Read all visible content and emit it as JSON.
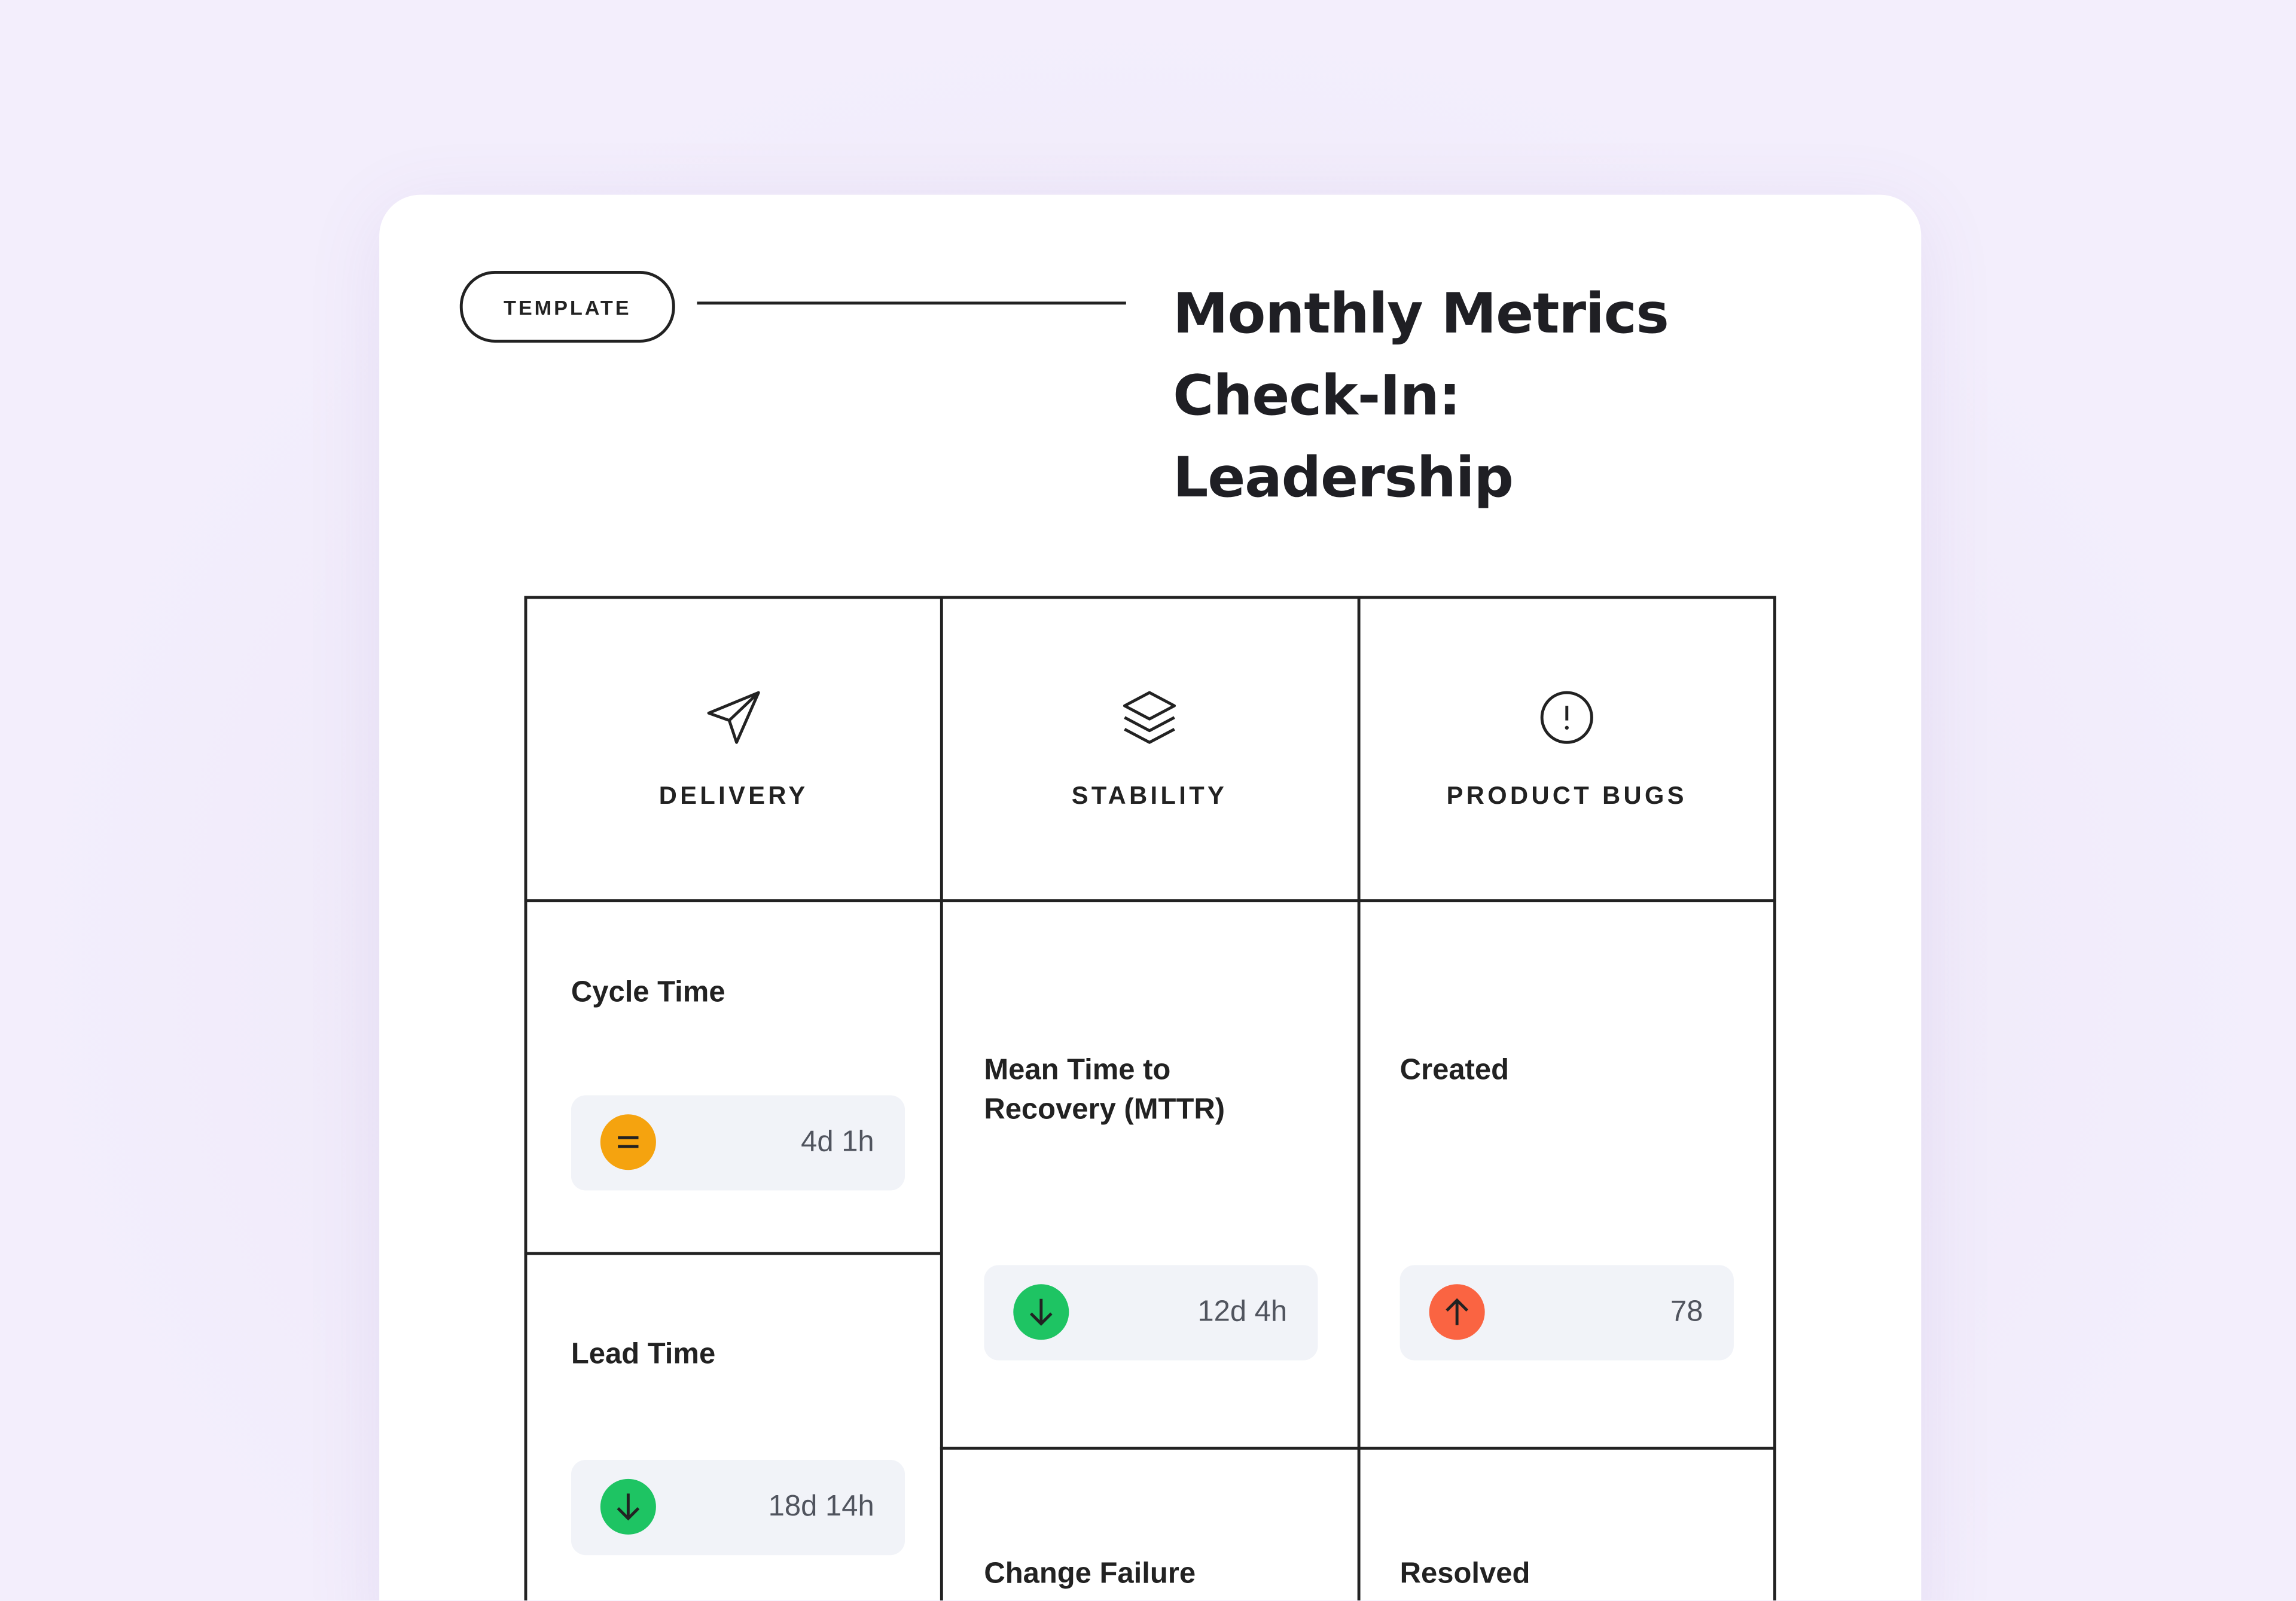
{
  "badge": "TEMPLATE",
  "title": "Monthly Metrics Check-In: Leadership",
  "columns": [
    {
      "heading": "DELIVERY",
      "metrics": [
        {
          "label": "Cycle Time",
          "value": "4d 1h"
        },
        {
          "label": "Lead Time",
          "value": "18d 14h"
        }
      ]
    },
    {
      "heading": "STABILITY",
      "metrics": [
        {
          "label": "Mean Time to Recovery (MTTR)",
          "value": "12d 4h"
        },
        {
          "label": "Change Failure"
        }
      ]
    },
    {
      "heading": "PRODUCT BUGS",
      "metrics": [
        {
          "label": "Created",
          "value": "78"
        },
        {
          "label": "Resolved"
        }
      ]
    }
  ]
}
